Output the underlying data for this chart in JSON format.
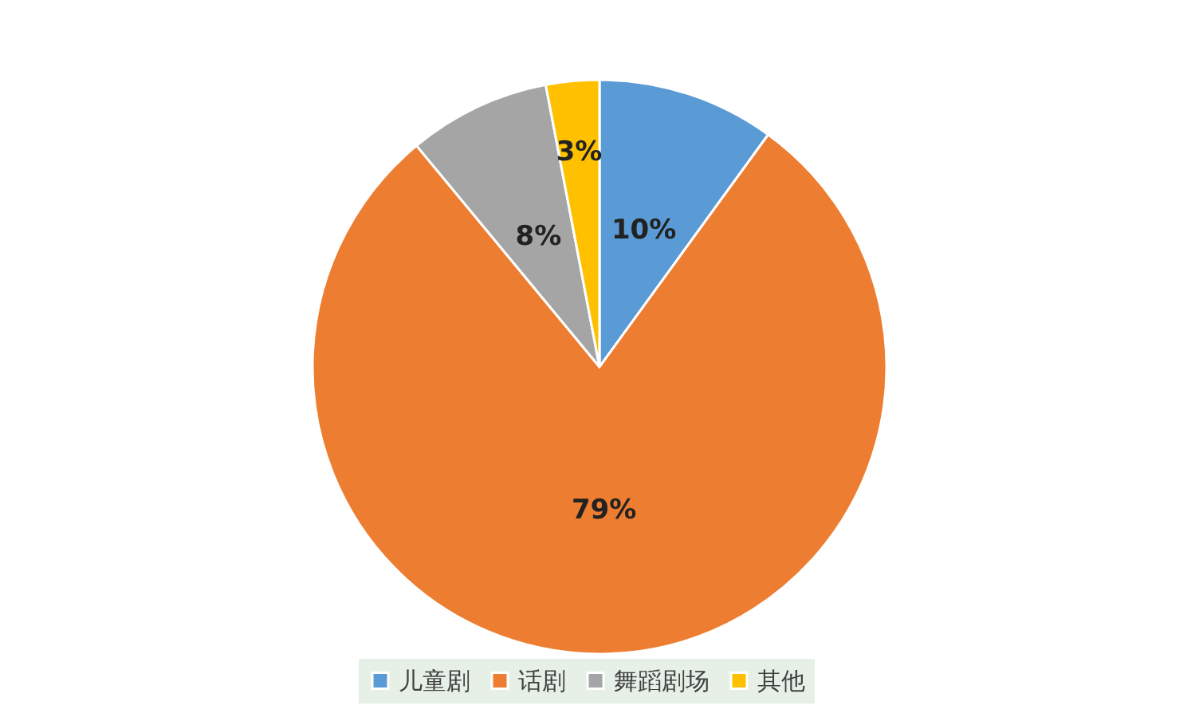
{
  "chart_data": {
    "type": "pie",
    "categories": [
      "儿童剧",
      "话剧",
      "舞蹈剧场",
      "其他"
    ],
    "values": [
      10,
      79,
      8,
      3
    ],
    "value_labels": [
      "10%",
      "79%",
      "8%",
      "3%"
    ],
    "colors": [
      "#5b9bd5",
      "#ed7d31",
      "#a5a5a5",
      "#ffc000"
    ],
    "legend": "bottom"
  }
}
